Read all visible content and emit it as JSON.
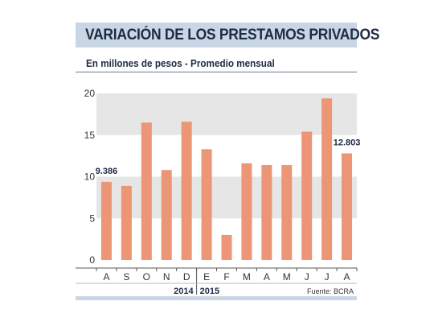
{
  "header": {
    "title": "VARIACIÓN DE LOS PRESTAMOS PRIVADOS",
    "subtitle": "En millones de pesos - Promedio mensual",
    "source": "Fuente: BCRA"
  },
  "colors": {
    "bar": "#ec9577",
    "band": "#e6e6e6",
    "title_bg": "#c9d6e4",
    "title_text": "#1d2b44"
  },
  "chart_data": {
    "type": "bar",
    "categories": [
      "A",
      "S",
      "O",
      "N",
      "D",
      "E",
      "F",
      "M",
      "A",
      "M",
      "J",
      "J",
      "A"
    ],
    "values": [
      9.386,
      8.9,
      16.5,
      10.8,
      16.6,
      13.3,
      3.0,
      11.6,
      11.4,
      11.4,
      15.4,
      19.4,
      12.803
    ],
    "data_labels": [
      {
        "index": 0,
        "text": "9.386"
      },
      {
        "index": 12,
        "text": "12.803"
      }
    ],
    "year_groups": [
      {
        "label": "2014",
        "start": 0,
        "end": 4
      },
      {
        "label": "2015",
        "start": 5,
        "end": 12
      }
    ],
    "y_ticks": [
      "0",
      "5",
      "10",
      "15",
      "20"
    ],
    "ylim": [
      0,
      20
    ],
    "grid": "alternating horizontal bands",
    "legend": "none"
  }
}
